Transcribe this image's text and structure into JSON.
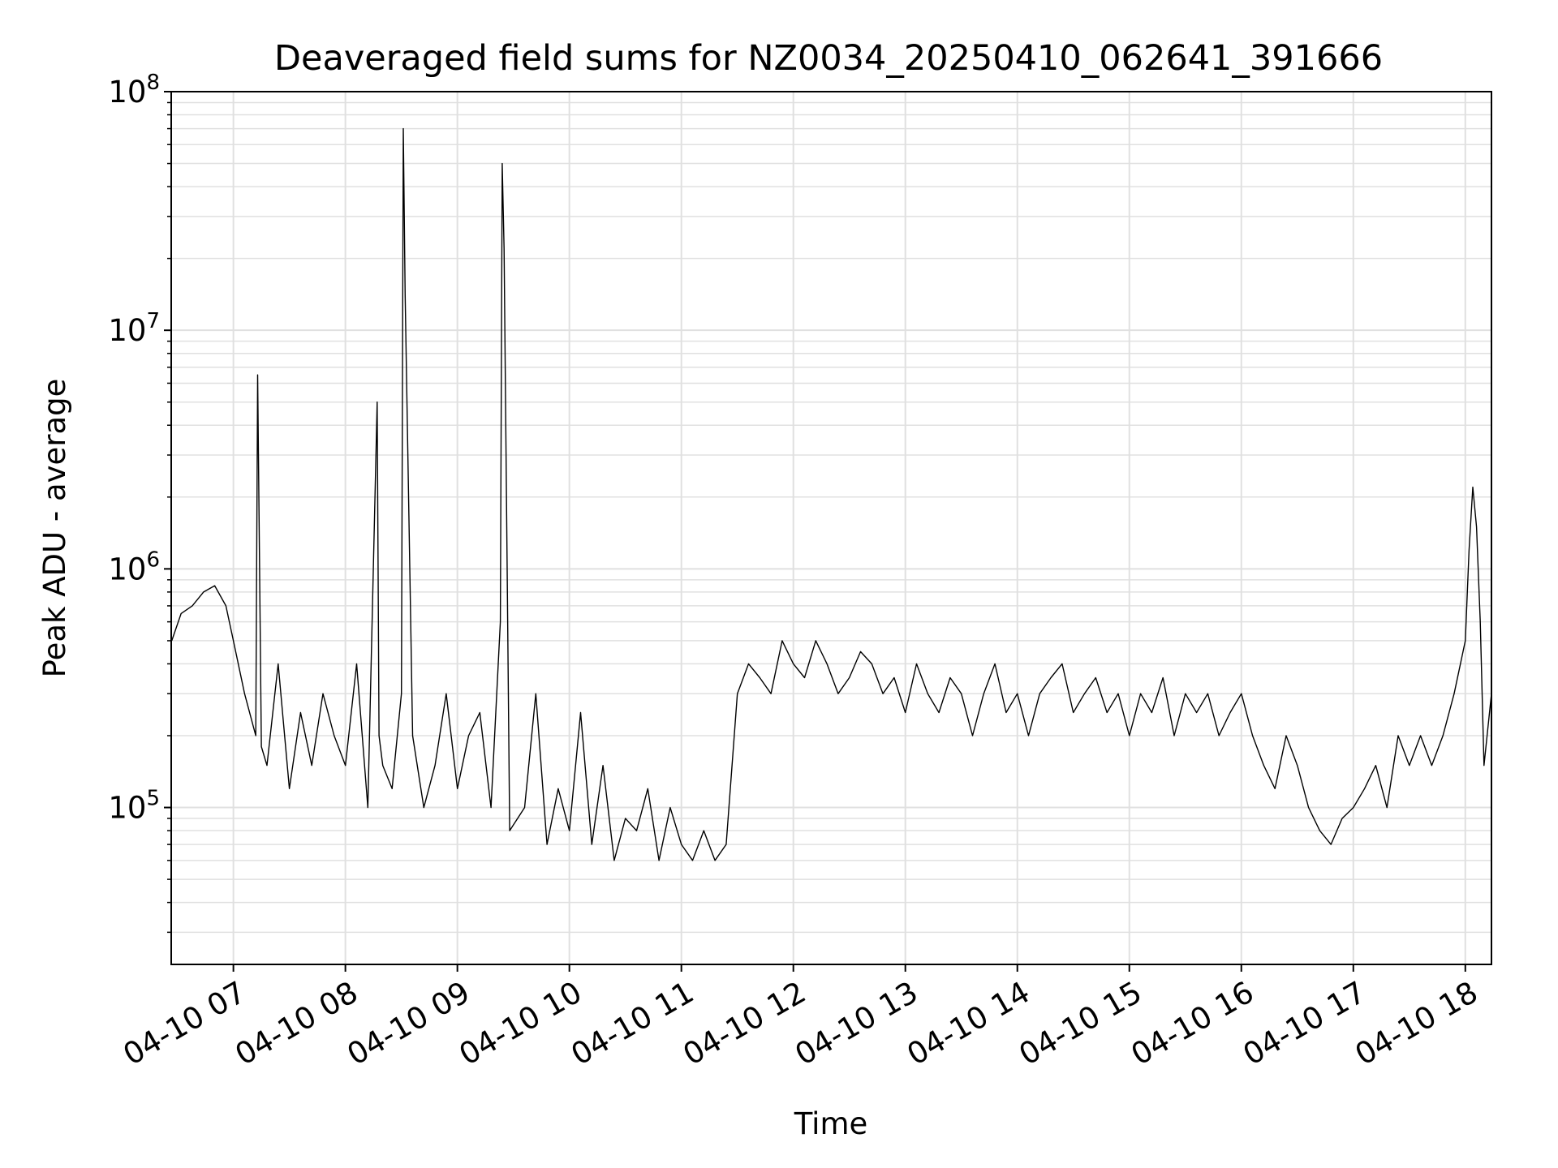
{
  "chart_data": {
    "type": "line",
    "title": "Deaveraged field sums for NZ0034_20250410_062641_391666",
    "xlabel": "Time",
    "ylabel": "Peak ADU - average",
    "y_scale": "log",
    "ylim": [
      22000,
      100000000
    ],
    "xlim": [
      "2025-04-10 06:26:41",
      "2025-04-10 18:14:00"
    ],
    "grid": true,
    "line_color": "#000000",
    "grid_color": "#e0e0e0",
    "x_ticks": [
      {
        "value": "2025-04-10 07:00",
        "label": "04-10 07"
      },
      {
        "value": "2025-04-10 08:00",
        "label": "04-10 08"
      },
      {
        "value": "2025-04-10 09:00",
        "label": "04-10 09"
      },
      {
        "value": "2025-04-10 10:00",
        "label": "04-10 10"
      },
      {
        "value": "2025-04-10 11:00",
        "label": "04-10 11"
      },
      {
        "value": "2025-04-10 12:00",
        "label": "04-10 12"
      },
      {
        "value": "2025-04-10 13:00",
        "label": "04-10 13"
      },
      {
        "value": "2025-04-10 14:00",
        "label": "04-10 14"
      },
      {
        "value": "2025-04-10 15:00",
        "label": "04-10 15"
      },
      {
        "value": "2025-04-10 16:00",
        "label": "04-10 16"
      },
      {
        "value": "2025-04-10 17:00",
        "label": "04-10 17"
      },
      {
        "value": "2025-04-10 18:00",
        "label": "04-10 18"
      }
    ],
    "y_ticks": [
      {
        "value": 100000,
        "base": "10",
        "exp": "5"
      },
      {
        "value": 1000000,
        "base": "10",
        "exp": "6"
      },
      {
        "value": 10000000,
        "base": "10",
        "exp": "7"
      },
      {
        "value": 100000000,
        "base": "10",
        "exp": "8"
      }
    ],
    "series": [
      {
        "x": [
          "2025-04-10 06:27",
          "2025-04-10 06:32",
          "2025-04-10 06:38",
          "2025-04-10 06:44",
          "2025-04-10 06:50",
          "2025-04-10 06:56",
          "2025-04-10 07:00",
          "2025-04-10 07:06",
          "2025-04-10 07:12",
          "2025-04-10 07:13",
          "2025-04-10 07:15",
          "2025-04-10 07:18",
          "2025-04-10 07:24",
          "2025-04-10 07:30",
          "2025-04-10 07:36",
          "2025-04-10 07:42",
          "2025-04-10 07:48",
          "2025-04-10 07:54",
          "2025-04-10 08:00",
          "2025-04-10 08:06",
          "2025-04-10 08:12",
          "2025-04-10 08:17",
          "2025-04-10 08:18",
          "2025-04-10 08:20",
          "2025-04-10 08:25",
          "2025-04-10 08:30",
          "2025-04-10 08:31",
          "2025-04-10 08:32",
          "2025-04-10 08:36",
          "2025-04-10 08:42",
          "2025-04-10 08:48",
          "2025-04-10 08:54",
          "2025-04-10 09:00",
          "2025-04-10 09:06",
          "2025-04-10 09:12",
          "2025-04-10 09:18",
          "2025-04-10 09:23",
          "2025-04-10 09:24",
          "2025-04-10 09:25",
          "2025-04-10 09:28",
          "2025-04-10 09:36",
          "2025-04-10 09:42",
          "2025-04-10 09:48",
          "2025-04-10 09:54",
          "2025-04-10 10:00",
          "2025-04-10 10:06",
          "2025-04-10 10:12",
          "2025-04-10 10:18",
          "2025-04-10 10:24",
          "2025-04-10 10:30",
          "2025-04-10 10:36",
          "2025-04-10 10:42",
          "2025-04-10 10:48",
          "2025-04-10 10:54",
          "2025-04-10 11:00",
          "2025-04-10 11:06",
          "2025-04-10 11:12",
          "2025-04-10 11:18",
          "2025-04-10 11:24",
          "2025-04-10 11:30",
          "2025-04-10 11:36",
          "2025-04-10 11:42",
          "2025-04-10 11:48",
          "2025-04-10 11:54",
          "2025-04-10 12:00",
          "2025-04-10 12:06",
          "2025-04-10 12:12",
          "2025-04-10 12:18",
          "2025-04-10 12:24",
          "2025-04-10 12:30",
          "2025-04-10 12:36",
          "2025-04-10 12:42",
          "2025-04-10 12:48",
          "2025-04-10 12:54",
          "2025-04-10 13:00",
          "2025-04-10 13:06",
          "2025-04-10 13:12",
          "2025-04-10 13:18",
          "2025-04-10 13:24",
          "2025-04-10 13:30",
          "2025-04-10 13:36",
          "2025-04-10 13:42",
          "2025-04-10 13:48",
          "2025-04-10 13:54",
          "2025-04-10 14:00",
          "2025-04-10 14:06",
          "2025-04-10 14:12",
          "2025-04-10 14:18",
          "2025-04-10 14:24",
          "2025-04-10 14:30",
          "2025-04-10 14:36",
          "2025-04-10 14:42",
          "2025-04-10 14:48",
          "2025-04-10 14:54",
          "2025-04-10 15:00",
          "2025-04-10 15:06",
          "2025-04-10 15:12",
          "2025-04-10 15:18",
          "2025-04-10 15:24",
          "2025-04-10 15:30",
          "2025-04-10 15:36",
          "2025-04-10 15:42",
          "2025-04-10 15:48",
          "2025-04-10 15:54",
          "2025-04-10 16:00",
          "2025-04-10 16:06",
          "2025-04-10 16:12",
          "2025-04-10 16:18",
          "2025-04-10 16:24",
          "2025-04-10 16:30",
          "2025-04-10 16:36",
          "2025-04-10 16:42",
          "2025-04-10 16:48",
          "2025-04-10 16:54",
          "2025-04-10 17:00",
          "2025-04-10 17:06",
          "2025-04-10 17:12",
          "2025-04-10 17:18",
          "2025-04-10 17:24",
          "2025-04-10 17:30",
          "2025-04-10 17:36",
          "2025-04-10 17:42",
          "2025-04-10 17:48",
          "2025-04-10 17:54",
          "2025-04-10 18:00",
          "2025-04-10 18:02",
          "2025-04-10 18:04",
          "2025-04-10 18:06",
          "2025-04-10 18:08",
          "2025-04-10 18:10",
          "2025-04-10 18:14"
        ],
        "y": [
          500000,
          650000,
          700000,
          800000,
          850000,
          700000,
          500000,
          300000,
          200000,
          6500000,
          180000,
          150000,
          400000,
          120000,
          250000,
          150000,
          300000,
          200000,
          150000,
          400000,
          100000,
          5000000,
          200000,
          150000,
          120000,
          300000,
          70000000,
          14000000,
          200000,
          100000,
          150000,
          300000,
          120000,
          200000,
          250000,
          100000,
          600000,
          50000000,
          22000000,
          80000,
          100000,
          300000,
          70000,
          120000,
          80000,
          250000,
          70000,
          150000,
          60000,
          90000,
          80000,
          120000,
          60000,
          100000,
          70000,
          60000,
          80000,
          60000,
          70000,
          300000,
          400000,
          350000,
          300000,
          500000,
          400000,
          350000,
          500000,
          400000,
          300000,
          350000,
          450000,
          400000,
          300000,
          350000,
          250000,
          400000,
          300000,
          250000,
          350000,
          300000,
          200000,
          300000,
          400000,
          250000,
          300000,
          200000,
          300000,
          350000,
          400000,
          250000,
          300000,
          350000,
          250000,
          300000,
          200000,
          300000,
          250000,
          350000,
          200000,
          300000,
          250000,
          300000,
          200000,
          250000,
          300000,
          200000,
          150000,
          120000,
          200000,
          150000,
          100000,
          80000,
          70000,
          90000,
          100000,
          120000,
          150000,
          100000,
          200000,
          150000,
          200000,
          150000,
          200000,
          300000,
          500000,
          1200000,
          2200000,
          1500000,
          600000,
          150000,
          300000
        ]
      }
    ]
  }
}
